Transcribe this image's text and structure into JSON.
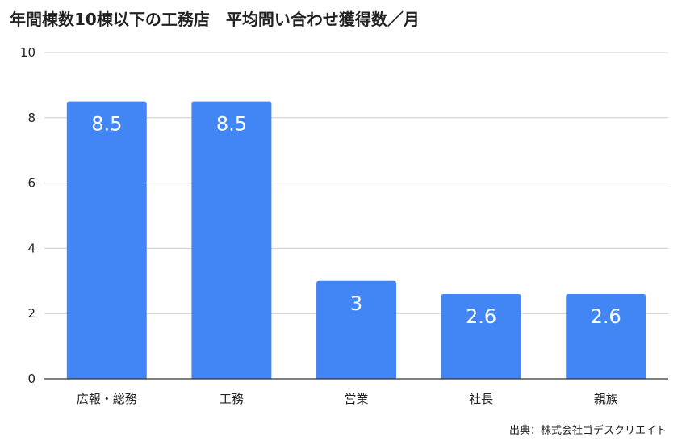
{
  "chart_data": {
    "type": "bar",
    "title": "年間棟数10棟以下の工務店　平均問い合わせ獲得数／月",
    "categories": [
      "広報・総務",
      "工務",
      "営業",
      "社長",
      "親族"
    ],
    "values": [
      8.5,
      8.5,
      3,
      2.6,
      2.6
    ],
    "data_labels": [
      "8.5",
      "8.5",
      "3",
      "2.6",
      "2.6"
    ],
    "yticks": [
      0,
      2,
      4,
      6,
      8,
      10
    ],
    "ylim": [
      0,
      10
    ],
    "xlabel": "",
    "ylabel": "",
    "grid": true,
    "legend": "none",
    "bar_color": "#4285f4",
    "grid_color": "#cccccc",
    "axis_color": "#333333"
  },
  "source_note": "出典：株式会社ゴデスクリエイト"
}
